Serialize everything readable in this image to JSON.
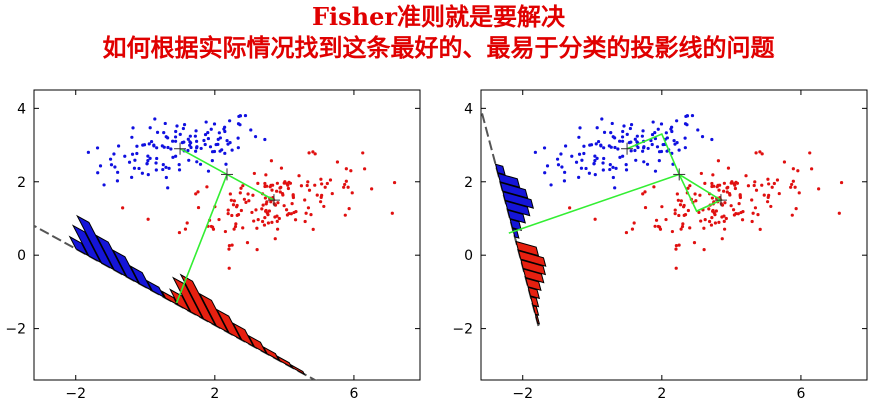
{
  "title": {
    "line1": "Fisher准则就是要解决",
    "line2": "如何根据实际情况找到这条最好的、最易于分类的投影线的问题"
  },
  "colors": {
    "title": "#e00000",
    "class1": "#1010e0",
    "class2": "#e01010",
    "blue_bar": "#1515d8",
    "red_bar": "#e62010",
    "projection_line": "#555555",
    "connector": "#33ee33"
  },
  "chart_data": [
    {
      "type": "scatter",
      "xlim": [
        -3.2,
        7.9
      ],
      "ylim": [
        -3.4,
        4.5
      ],
      "x_ticks": [
        "-2",
        "2",
        "6"
      ],
      "y_ticks": [
        "4",
        "2",
        "0",
        "-2"
      ],
      "x_tick_values": [
        -2,
        2,
        6
      ],
      "y_tick_values": [
        4,
        2,
        0,
        -2
      ],
      "grid": false,
      "class_means": [
        [
          1.0,
          2.9
        ],
        [
          3.7,
          1.5
        ]
      ],
      "projection_line": {
        "through": [
          -3.2,
          0.8
        ],
        "direction": [
          1,
          -0.52
        ]
      },
      "connector": [
        [
          1.0,
          2.9
        ],
        [
          2.35,
          2.2
        ],
        [
          3.7,
          1.5
        ],
        [
          2.35,
          2.2
        ],
        [
          0.9,
          -1.3
        ]
      ],
      "histogram_blue": [
        0.22,
        0.55,
        0.85,
        0.62,
        0.48,
        0.32,
        0.18,
        0.1,
        0.05
      ],
      "histogram_red": [
        0.12,
        0.28,
        0.62,
        0.8,
        0.58,
        0.42,
        0.3,
        0.2,
        0.12,
        0.08,
        0.05
      ]
    },
    {
      "type": "scatter",
      "xlim": [
        -3.2,
        7.9
      ],
      "ylim": [
        -3.4,
        4.5
      ],
      "x_ticks": [
        "-2",
        "2",
        "6"
      ],
      "y_ticks": [
        "4",
        "2",
        "0",
        "-2"
      ],
      "x_tick_values": [
        -2,
        2,
        6
      ],
      "y_tick_values": [
        4,
        2,
        0,
        -2
      ],
      "grid": false,
      "class_means": [
        [
          1.0,
          2.9
        ],
        [
          3.7,
          1.5
        ]
      ],
      "projection_line": {
        "through": [
          -2.9,
          2.9
        ],
        "direction": [
          0.28,
          -1
        ]
      },
      "connector": [
        [
          1.0,
          2.9
        ],
        [
          2.0,
          3.3
        ],
        [
          2.5,
          2.2
        ],
        [
          3.0,
          1.2
        ],
        [
          3.7,
          1.5
        ],
        [
          2.5,
          2.2
        ],
        [
          -2.4,
          0.6
        ]
      ],
      "histogram_blue": [
        0.18,
        0.48,
        0.62,
        0.7,
        0.55,
        0.38,
        0.22,
        0.1
      ],
      "histogram_red": [
        0.5,
        0.62,
        0.55,
        0.45,
        0.32,
        0.22,
        0.14,
        0.08,
        0.04
      ]
    }
  ]
}
